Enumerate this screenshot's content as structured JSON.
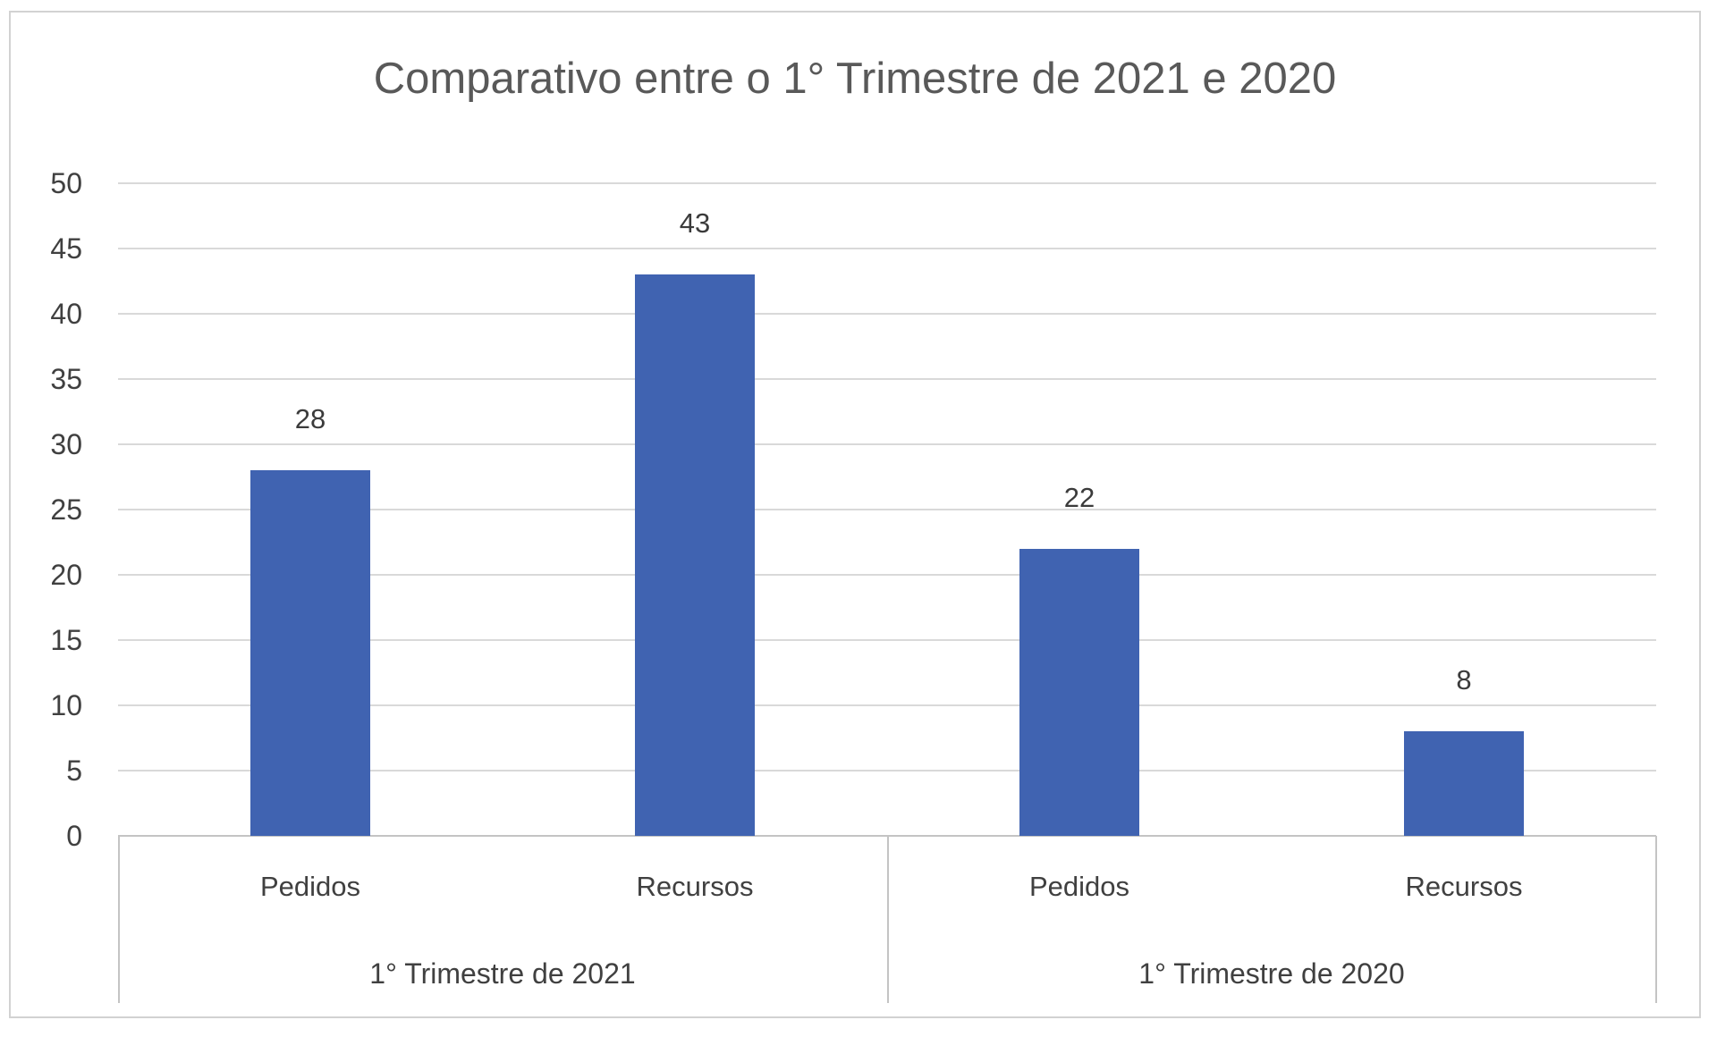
{
  "chart_data": {
    "type": "bar",
    "title": "Comparativo entre o 1° Trimestre de 2021 e 2020",
    "ylabel": "",
    "xlabel": "",
    "ylim": [
      0,
      50
    ],
    "ytick_step": 5,
    "yticks": [
      0,
      5,
      10,
      15,
      20,
      25,
      30,
      35,
      40,
      45,
      50
    ],
    "grid": true,
    "legend_position": "none",
    "bar_color": "#4063b1",
    "groups": [
      {
        "label": "1° Trimestre de 2021",
        "categories": [
          "Pedidos",
          "Recursos"
        ],
        "values": [
          28,
          43
        ]
      },
      {
        "label": "1° Trimestre de 2020",
        "categories": [
          "Pedidos",
          "Recursos"
        ],
        "values": [
          22,
          8
        ]
      }
    ],
    "points": [
      {
        "group": "1° Trimestre de 2021",
        "category": "Pedidos",
        "value": 28,
        "data_label": "28"
      },
      {
        "group": "1° Trimestre de 2021",
        "category": "Recursos",
        "value": 43,
        "data_label": "43"
      },
      {
        "group": "1° Trimestre de 2020",
        "category": "Pedidos",
        "value": 22,
        "data_label": "22"
      },
      {
        "group": "1° Trimestre de 2020",
        "category": "Recursos",
        "value": 8,
        "data_label": "8"
      }
    ]
  },
  "colors": {
    "bar": "#4063b1",
    "gridline": "#d9d9d9",
    "axis_line": "#c4c4c4",
    "tick_text": "#404040",
    "title_text": "#595959",
    "frame_border": "#d2d2d2",
    "background": "#ffffff"
  }
}
